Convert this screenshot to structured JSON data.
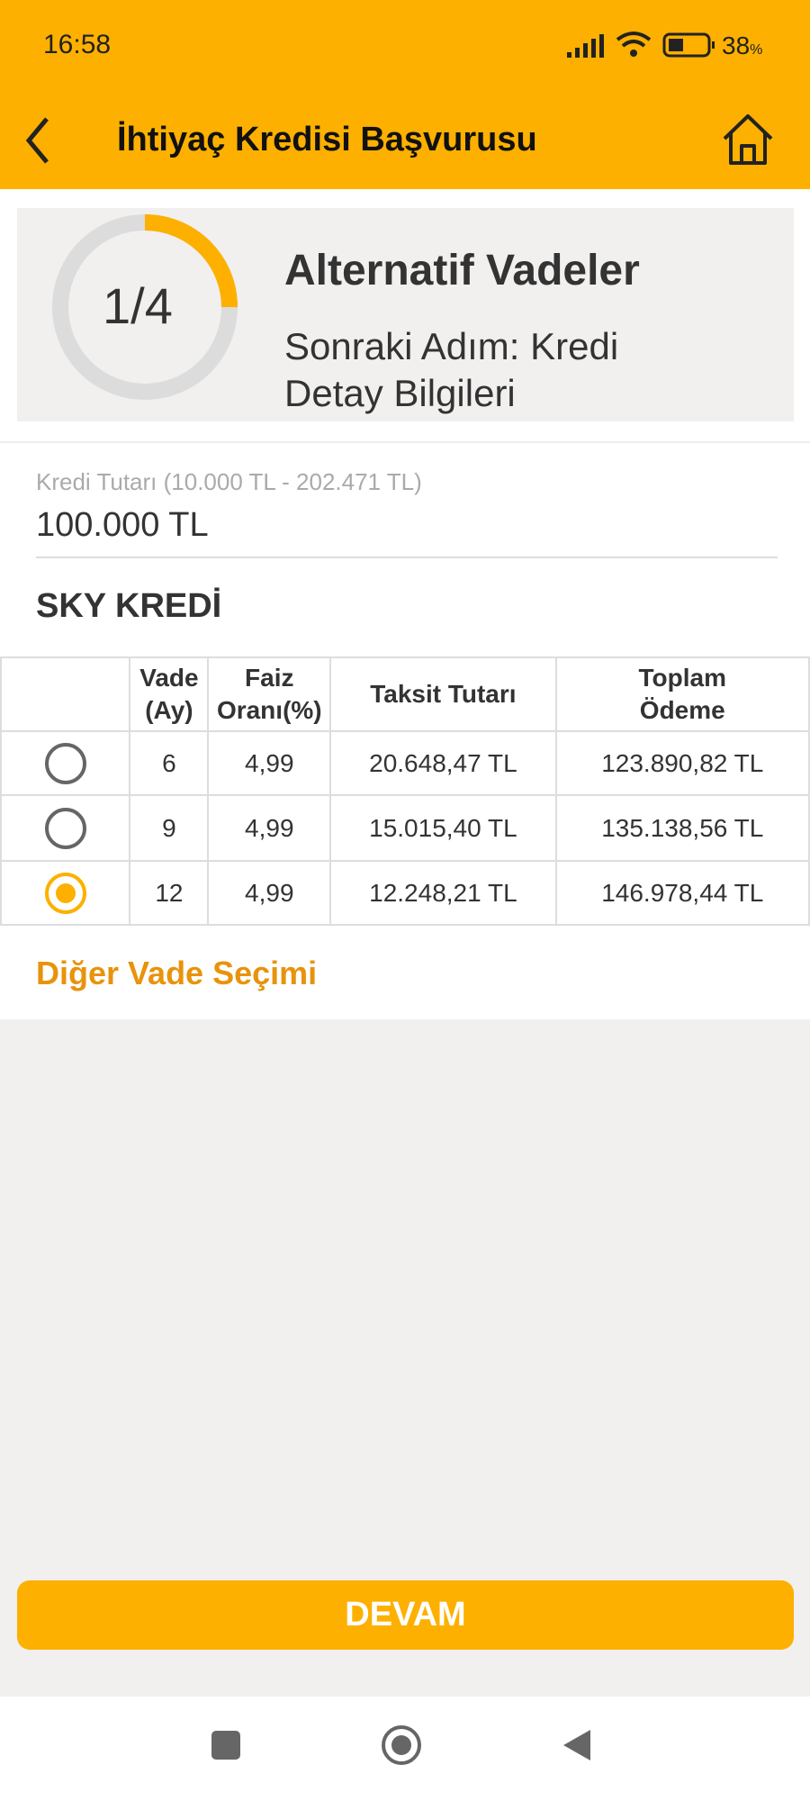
{
  "status": {
    "time": "16:58",
    "battery": "38",
    "battery_unit": "%",
    "battery_level": 0.38
  },
  "appbar": {
    "title": "İhtiyaç Kredisi Başvurusu"
  },
  "step": {
    "label": "1/4",
    "progress": 0.25,
    "title": "Alternatif Vadeler",
    "next": "Sonraki Adım: Kredi Detay Bilgileri"
  },
  "amount": {
    "label": "Kredi Tutarı (10.000 TL - 202.471 TL)",
    "value": "100.000 TL"
  },
  "product": "SKY KREDİ",
  "table": {
    "headers": [
      "Vade (Ay)",
      "Faiz Oranı(%)",
      "Taksit Tutarı",
      "Toplam Ödeme"
    ],
    "rows": [
      {
        "vade": "6",
        "faiz": "4,99",
        "taksit": "20.648,47 TL",
        "toplam": "123.890,82 TL",
        "selected": false
      },
      {
        "vade": "9",
        "faiz": "4,99",
        "taksit": "15.015,40 TL",
        "toplam": "135.138,56 TL",
        "selected": false
      },
      {
        "vade": "12",
        "faiz": "4,99",
        "taksit": "12.248,21 TL",
        "toplam": "146.978,44 TL",
        "selected": true
      }
    ]
  },
  "other_term": "Diğer Vade Seçimi",
  "button": "DEVAM",
  "colors": {
    "accent": "#fdb000",
    "link": "#e8930c"
  }
}
